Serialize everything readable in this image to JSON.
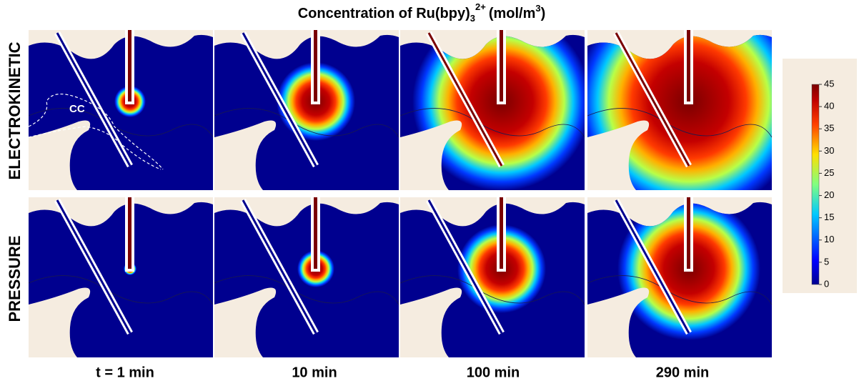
{
  "figure": {
    "title": {
      "text": "Concentration of Ru(bpy)",
      "subscript": "3",
      "superscript": "2+",
      "unit": "(mol/m",
      "unit_superscript": "3",
      "unit_close": ")"
    },
    "rows": [
      "ELECTROKINETIC",
      "PRESSURE"
    ],
    "columns": [
      "t = 1 min",
      "10 min",
      "100 min",
      "290 min"
    ],
    "annotation": "CC",
    "colorbar": {
      "ticks": [
        0,
        5,
        10,
        15,
        20,
        25,
        30,
        35,
        40,
        45
      ]
    }
  }
}
